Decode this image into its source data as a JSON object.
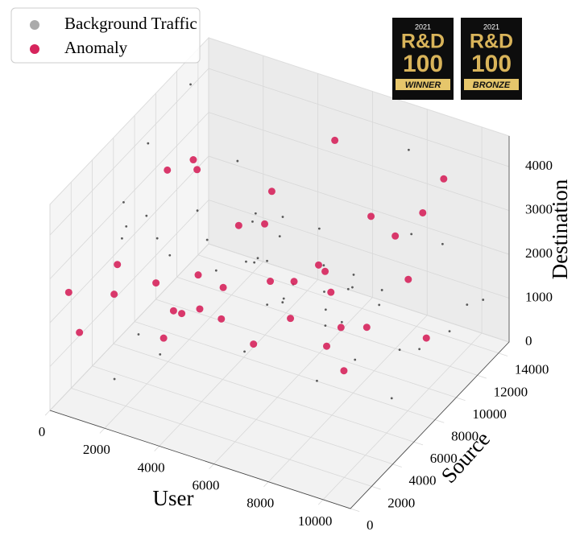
{
  "chart_data": {
    "type": "scatter3d",
    "xlabel": "User",
    "ylabel": "Source",
    "zlabel": "Destination",
    "xlim": [
      0,
      11000
    ],
    "ylim": [
      0,
      15000
    ],
    "zlim": [
      0,
      4700
    ],
    "xticks": [
      0,
      2000,
      4000,
      6000,
      8000,
      10000
    ],
    "yticks": [
      0,
      2000,
      4000,
      6000,
      8000,
      10000,
      12000,
      14000
    ],
    "zticks": [
      0,
      1000,
      2000,
      3000,
      4000
    ],
    "grid": true,
    "legend": "upper left",
    "series": [
      {
        "name": "Background Traffic",
        "color": "#333333",
        "x": [
          500,
          1200,
          2300,
          3100,
          4000,
          4800,
          5600,
          6400,
          7200,
          8100,
          9000,
          9800,
          10500,
          700,
          1800,
          2600,
          3500,
          4400,
          5200,
          6000,
          6900,
          7700,
          8600,
          9400,
          10200,
          300,
          1500,
          2800,
          3800,
          4600,
          5400,
          6300,
          7100,
          7900,
          8800,
          9600,
          10700,
          900,
          2000,
          3300,
          4200,
          5000,
          5900,
          6700,
          7500,
          8400,
          9200,
          10000,
          10900,
          1100
        ],
        "y": [
          12000,
          3000,
          8000,
          14000,
          1000,
          6000,
          11000,
          4000,
          9000,
          13000,
          2000,
          7000,
          10000,
          5000,
          14500,
          500,
          9500,
          3500,
          12500,
          7500,
          1500,
          11500,
          6500,
          13500,
          2500,
          8500,
          4500,
          10500,
          600,
          14000,
          5500,
          9800,
          2200,
          7800,
          12200,
          3800,
          11800,
          6800,
          1800,
          13200,
          8800,
          2800,
          10800,
          4800,
          14800,
          300,
          9300,
          5300,
          12800,
          7300
        ],
        "z": [
          4500,
          200,
          3000,
          1500,
          4100,
          800,
          2500,
          3700,
          1200,
          4300,
          2000,
          500,
          3400,
          2800,
          1000,
          4600,
          1700,
          3900,
          600,
          2200,
          4400,
          1400,
          3200,
          300,
          2600,
          4000,
          900,
          3600,
          1900,
          700,
          4200,
          1100,
          3300,
          2400,
          100,
          3800,
          1600,
          2900,
          4700,
          1300,
          2100,
          3500,
          400,
          2700,
          1800,
          4100,
          900,
          3100,
          1500,
          2300
        ]
      },
      {
        "name": "Anomaly",
        "color": "#d6245c",
        "x": [
          300,
          800,
          1500,
          2200,
          600,
          1900,
          3000,
          3600,
          4200,
          4800,
          5500,
          6200,
          7000,
          7800,
          8500,
          9300,
          10100,
          10600,
          2700,
          3300,
          4000,
          4600,
          5200,
          5900,
          6600,
          7300,
          8000,
          8800,
          9600,
          1200,
          2500,
          4400,
          6800,
          9000,
          500,
          3800
        ],
        "y": [
          1000,
          4000,
          2500,
          6000,
          12000,
          9000,
          3000,
          11000,
          7000,
          13000,
          2000,
          10000,
          5000,
          12500,
          8000,
          3500,
          9500,
          6500,
          14000,
          1500,
          10500,
          4500,
          13500,
          7500,
          2200,
          11500,
          5500,
          14500,
          3000,
          8000,
          6000,
          2800,
          9000,
          12000,
          1500,
          4200
        ],
        "z": [
          2500,
          1800,
          3000,
          1200,
          2800,
          3600,
          1500,
          2200,
          3300,
          1000,
          2700,
          1900,
          3100,
          2400,
          1600,
          2900,
          1300,
          3500,
          2000,
          3200,
          1100,
          2600,
          3800,
          1400,
          2300,
          3000,
          1700,
          3400,
          2100,
          3700,
          1200,
          2500,
          1800,
          3300,
          1500,
          2800
        ]
      }
    ],
    "badges": [
      {
        "year": "2021",
        "title": "R&D",
        "number": "100",
        "label": "WINNER"
      },
      {
        "year": "2021",
        "title": "R&D",
        "number": "100",
        "label": "BRONZE"
      }
    ]
  }
}
